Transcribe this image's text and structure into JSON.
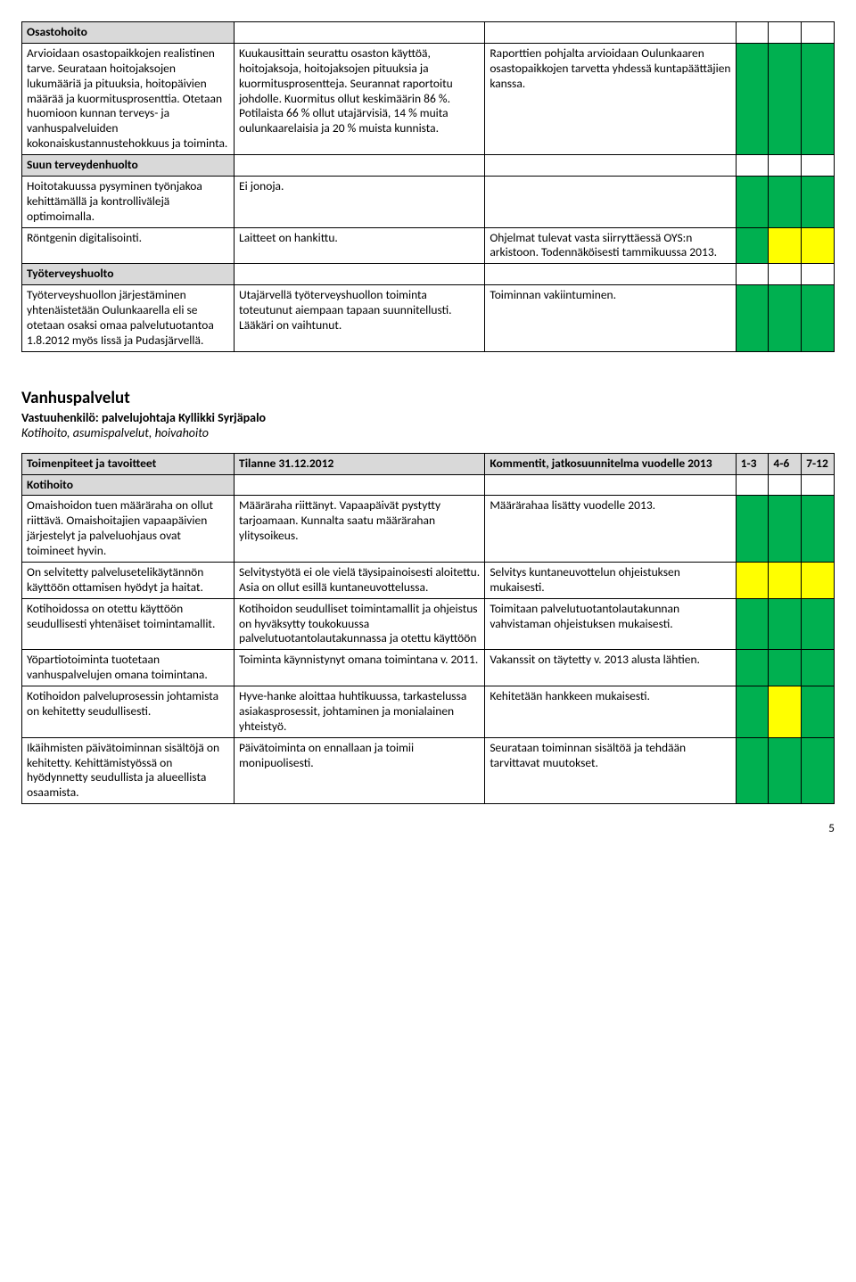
{
  "upper": {
    "section1": "Osastohoito",
    "r1a": "Arvioidaan osastopaikkojen realistinen tarve. Seurataan hoitojaksojen lukumääriä ja pituuksia, hoitopäivien määrää ja kuormitusprosenttia. Otetaan huomioon kunnan terveys- ja vanhuspalveluiden kokonaiskustannustehokkuus ja toiminta.",
    "r1b": "Kuukausittain seurattu osaston käyttöä, hoitojaksoja, hoitojaksojen pituuksia ja kuormitusprosentteja. Seurannat raportoitu johdolle. Kuormitus ollut keskimäärin 86 %. Potilaista 66 % ollut utajärvisiä, 14 % muita oulunkaarelaisia ja 20 % muista kunnista.",
    "r1c": "Raporttien pohjalta arvioidaan Oulunkaaren osastopaikkojen tarvetta yhdessä kuntapäättäjien kanssa.",
    "section2": "Suun terveydenhuolto",
    "r2a": "Hoitotakuussa pysyminen työnjakoa kehittämällä ja kontrollivälejä optimoimalla.",
    "r2b": "Ei jonoja.",
    "r3a": "Röntgenin digitalisointi.",
    "r3b": "Laitteet on hankittu.",
    "r3c": "Ohjelmat tulevat vasta siirryttäessä OYS:n arkistoon. Todennäköisesti tammikuussa 2013.",
    "section3": "Työterveyshuolto",
    "r4a": "Työterveyshuollon järjestäminen yhtenäistetään Oulunkaarella eli se otetaan osaksi omaa palvelutuotantoa 1.8.2012 myös Iissä ja Pudasjärvellä.",
    "r4b": "Utajärvellä työterveyshuollon toiminta toteutunut aiempaan tapaan suunnitellusti. Lääkäri on vaihtunut.",
    "r4c": "Toiminnan vakiintuminen."
  },
  "mid": {
    "heading": "Vanhuspalvelut",
    "subheading": "Vastuuhenkilö: palvelujohtaja Kyllikki Syrjäpalo",
    "italic": "Kotihoito, asumispalvelut, hoivahoito"
  },
  "lower": {
    "th1": "Toimenpiteet ja tavoitteet",
    "th2": "Tilanne 31.12.2012",
    "th3": "Kommentit, jatkosuunnitelma vuodelle 2013",
    "th4": "1-3",
    "th5": "4-6",
    "th6": "7-12",
    "section1": "Kotihoito",
    "r1a": "Omaishoidon tuen määräraha on ollut riittävä. Omaishoitajien vapaapäivien järjestelyt ja palveluohjaus ovat toimineet hyvin.",
    "r1b": "Määräraha riittänyt. Vapaapäivät pystytty tarjoamaan. Kunnalta saatu määrärahan ylitysoikeus.",
    "r1c": "Määrärahaa lisätty vuodelle 2013.",
    "r2a": "On selvitetty palvelusetelikäytännön käyttöön ottamisen hyödyt ja haitat.",
    "r2b": "Selvitystyötä ei ole vielä täysipainoisesti aloitettu. Asia on ollut esillä kuntaneuvottelussa.",
    "r2c": "Selvitys kuntaneuvottelun ohjeistuksen mukaisesti.",
    "r3a": "Kotihoidossa on otettu käyttöön seudullisesti yhtenäiset toimintamallit.",
    "r3b": "Kotihoidon seudulliset toimintamallit ja ohjeistus on hyväksytty toukokuussa palvelutuotantolautakunnassa ja otettu käyttöön",
    "r3c": "Toimitaan palvelutuotantolautakunnan vahvistaman ohjeistuksen mukaisesti.",
    "r4a": "Yöpartiotoiminta tuotetaan vanhuspalvelujen omana toimintana.",
    "r4b": "Toiminta käynnistynyt omana toimintana v. 2011.",
    "r4c": "Vakanssit on täytetty v. 2013 alusta lähtien.",
    "r5a": "Kotihoidon palveluprosessin johtamista on kehitetty seudullisesti.",
    "r5b": "Hyve-hanke aloittaa huhtikuussa, tarkastelussa asiakasprosessit, johtaminen ja monialainen yhteistyö.",
    "r5c": "Kehitetään hankkeen mukaisesti.",
    "r6a": "Ikäihmisten päivätoiminnan sisältöjä on kehitetty. Kehittämistyössä on hyödynnetty seudullista ja alueellista osaamista.",
    "r6b": "Päivätoiminta on ennallaan ja toimii monipuolisesti.",
    "r6c": "Seurataan toiminnan sisältöä ja tehdään tarvittavat muutokset."
  },
  "pagenum": "5"
}
